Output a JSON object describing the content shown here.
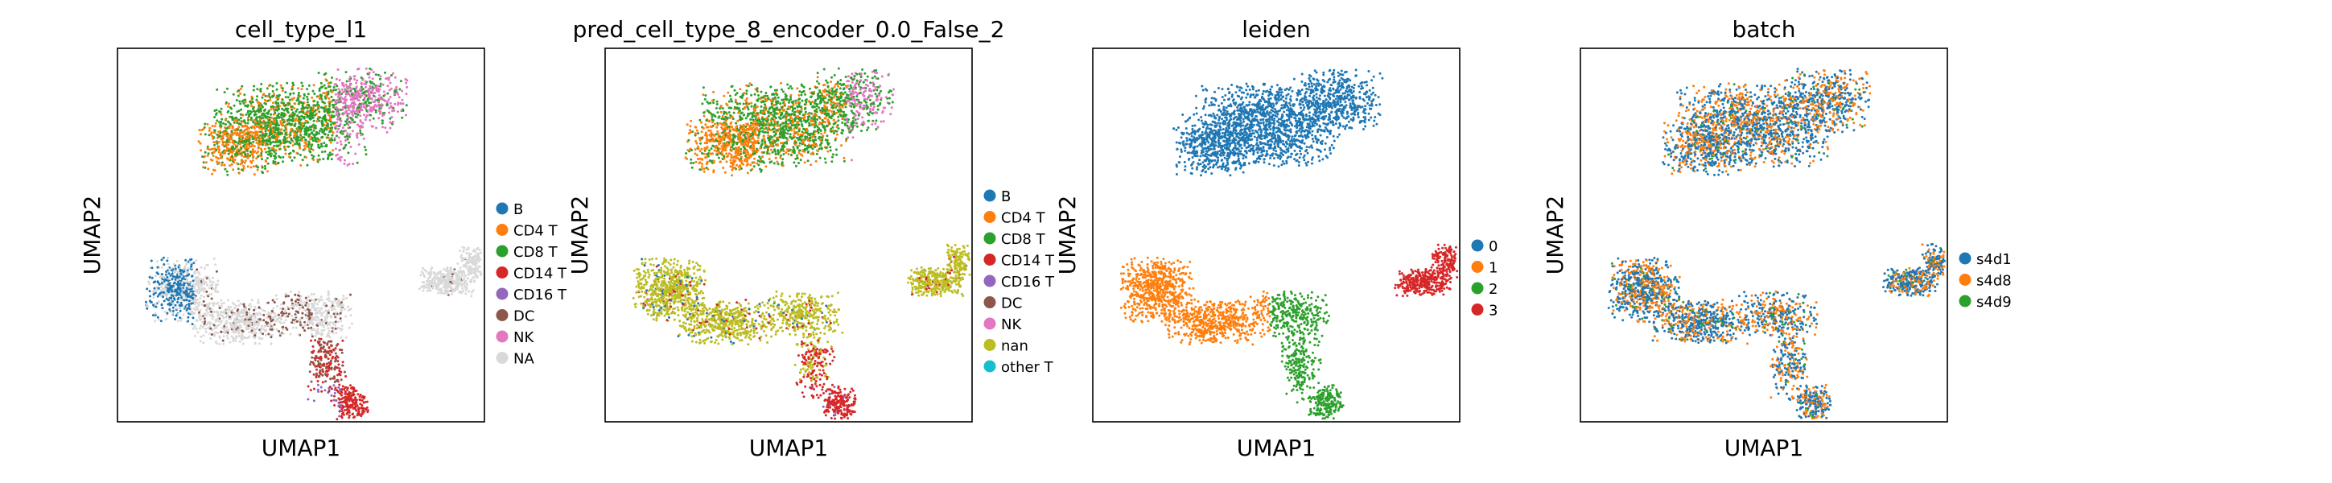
{
  "chart_data": [
    {
      "type": "scatter",
      "title": "cell_type_l1",
      "xlabel": "UMAP1",
      "ylabel": "UMAP2",
      "legend": "right",
      "grid": false,
      "series": [
        {
          "name": "B",
          "color": "#1f77b4"
        },
        {
          "name": "CD4 T",
          "color": "#ff7f0e"
        },
        {
          "name": "CD8 T",
          "color": "#2ca02c"
        },
        {
          "name": "CD14 T",
          "color": "#d62728"
        },
        {
          "name": "CD16 T",
          "color": "#9467bd"
        },
        {
          "name": "DC",
          "color": "#8c564b"
        },
        {
          "name": "NK",
          "color": "#e377c2"
        },
        {
          "name": "NA",
          "color": "#d9d9d9"
        }
      ]
    },
    {
      "type": "scatter",
      "title": "pred_cell_type_8_encoder_0.0_False_2",
      "xlabel": "UMAP1",
      "ylabel": "UMAP2",
      "legend": "right",
      "grid": false,
      "series": [
        {
          "name": "B",
          "color": "#1f77b4"
        },
        {
          "name": "CD4 T",
          "color": "#ff7f0e"
        },
        {
          "name": "CD8 T",
          "color": "#2ca02c"
        },
        {
          "name": "CD14 T",
          "color": "#d62728"
        },
        {
          "name": "CD16 T",
          "color": "#9467bd"
        },
        {
          "name": "DC",
          "color": "#8c564b"
        },
        {
          "name": "NK",
          "color": "#e377c2"
        },
        {
          "name": "nan",
          "color": "#bcbd22"
        },
        {
          "name": "other T",
          "color": "#17becf"
        }
      ]
    },
    {
      "type": "scatter",
      "title": "leiden",
      "xlabel": "UMAP1",
      "ylabel": "UMAP2",
      "legend": "right",
      "grid": false,
      "series": [
        {
          "name": "0",
          "color": "#1f77b4"
        },
        {
          "name": "1",
          "color": "#ff7f0e"
        },
        {
          "name": "2",
          "color": "#2ca02c"
        },
        {
          "name": "3",
          "color": "#d62728"
        }
      ]
    },
    {
      "type": "scatter",
      "title": "batch",
      "xlabel": "UMAP1",
      "ylabel": "UMAP2",
      "legend": "right",
      "grid": false,
      "series": [
        {
          "name": "s4d1",
          "color": "#1f77b4"
        },
        {
          "name": "s4d8",
          "color": "#ff7f0e"
        },
        {
          "name": "s4d9",
          "color": "#2ca02c"
        }
      ]
    }
  ]
}
